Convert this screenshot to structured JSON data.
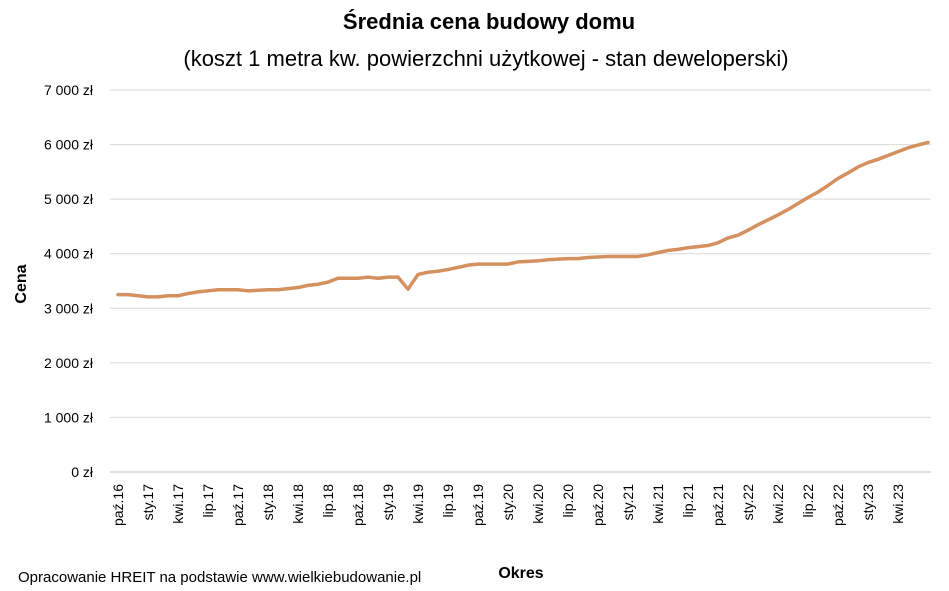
{
  "chart_data": {
    "type": "line",
    "title": "Średnia cena budowy domu",
    "subtitle": "(koszt 1 metra kw. powierzchni  użytkowej - stan deweloperski)",
    "xlabel": "Okres",
    "ylabel": "Cena",
    "ylim": [
      0,
      7000
    ],
    "yticks": [
      {
        "value": 0,
        "label": "0 zł"
      },
      {
        "value": 1000,
        "label": "1 000 zł"
      },
      {
        "value": 2000,
        "label": "2 000 zł"
      },
      {
        "value": 3000,
        "label": "3 000 zł"
      },
      {
        "value": 4000,
        "label": "4 000 zł"
      },
      {
        "value": 5000,
        "label": "5 000 zł"
      },
      {
        "value": 6000,
        "label": "6 000 zł"
      },
      {
        "value": 7000,
        "label": "7 000 zł"
      }
    ],
    "grid": true,
    "legend": "none",
    "line_color": "#D4905E",
    "grid_color": "#d9d9d9",
    "x": [
      "paź.16",
      "lis.16",
      "gru.16",
      "sty.17",
      "lut.17",
      "mar.17",
      "kwi.17",
      "maj.17",
      "cze.17",
      "lip.17",
      "sie.17",
      "wrz.17",
      "paź.17",
      "lis.17",
      "gru.17",
      "sty.18",
      "lut.18",
      "mar.18",
      "kwi.18",
      "maj.18",
      "cze.18",
      "lip.18",
      "sie.18",
      "wrz.18",
      "paź.18",
      "lis.18",
      "gru.18",
      "sty.19",
      "lut.19",
      "mar.19",
      "kwi.19",
      "maj.19",
      "cze.19",
      "lip.19",
      "sie.19",
      "wrz.19",
      "paź.19",
      "lis.19",
      "gru.19",
      "sty.20",
      "lut.20",
      "mar.20",
      "kwi.20",
      "maj.20",
      "cze.20",
      "lip.20",
      "sie.20",
      "wrz.20",
      "paź.20",
      "lis.20",
      "gru.20",
      "sty.21",
      "lut.21",
      "mar.21",
      "kwi.21",
      "maj.21",
      "cze.21",
      "lip.21",
      "sie.21",
      "wrz.21",
      "paź.21",
      "lis.21",
      "gru.21",
      "sty.22",
      "lut.22",
      "mar.22",
      "kwi.22",
      "maj.22",
      "cze.22",
      "lip.22",
      "sie.22",
      "wrz.22",
      "paź.22",
      "lis.22",
      "gru.22",
      "sty.23",
      "lut.23",
      "mar.23",
      "kwi.23",
      "maj.23",
      "cze.23",
      "lip.23"
    ],
    "xtick_labels": [
      "paź.16",
      "sty.17",
      "kwi.17",
      "lip.17",
      "paź.17",
      "sty.18",
      "kwi.18",
      "lip.18",
      "paź.18",
      "sty.19",
      "kwi.19",
      "lip.19",
      "paź.19",
      "sty.20",
      "kwi.20",
      "lip.20",
      "paź.20",
      "sty.21",
      "kwi.21",
      "lip.21",
      "paź.21",
      "sty.22",
      "kwi.22",
      "lip.22",
      "paź.22",
      "sty.23",
      "kwi.23"
    ],
    "series": [
      {
        "values": [
          3250,
          3250,
          3230,
          3210,
          3210,
          3230,
          3230,
          3270,
          3300,
          3320,
          3340,
          3340,
          3340,
          3320,
          3330,
          3340,
          3340,
          3360,
          3380,
          3420,
          3440,
          3480,
          3550,
          3550,
          3550,
          3570,
          3550,
          3570,
          3570,
          3350,
          3620,
          3660,
          3680,
          3710,
          3750,
          3790,
          3810,
          3810,
          3810,
          3810,
          3850,
          3860,
          3870,
          3890,
          3900,
          3910,
          3910,
          3930,
          3940,
          3950,
          3950,
          3950,
          3950,
          3980,
          4020,
          4060,
          4080,
          4110,
          4130,
          4150,
          4200,
          4290,
          4340,
          4430,
          4530,
          4620,
          4710,
          4810,
          4920,
          5030,
          5130,
          5250,
          5380,
          5480,
          5590,
          5670,
          5730,
          5800,
          5870,
          5940,
          5990,
          6040
        ]
      }
    ]
  },
  "footer": {
    "source": "Opracowanie HREIT na podstawie www.wielkiebudowanie.pl"
  }
}
